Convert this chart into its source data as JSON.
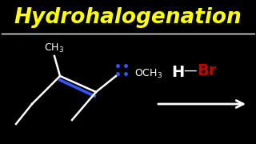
{
  "bg_color": "#000000",
  "title": "Hydrohalogenation",
  "title_color": "#FFFF00",
  "title_fontsize": 19,
  "line_color": "#FFFFFF",
  "alkene_color": "#FFFFFF",
  "double_bond_color": "#3355FF",
  "lone_pair_color": "#3355FF",
  "H_color": "#FFFFFF",
  "Br_color": "#CC0000",
  "arrow_color": "#FFFFFF"
}
